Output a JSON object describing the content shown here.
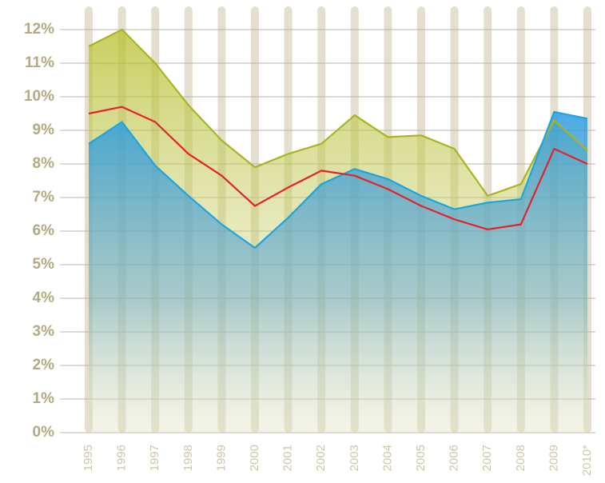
{
  "chart_data": {
    "type": "line",
    "categories": [
      "1995",
      "1996",
      "1997",
      "1998",
      "1999",
      "2000",
      "2001",
      "2002",
      "2003",
      "2004",
      "2005",
      "2006",
      "2007",
      "2008",
      "2009",
      "2010*"
    ],
    "series": [
      {
        "color": "#a9b420",
        "fill": true,
        "values": [
          11.5,
          12.0,
          11.0,
          9.75,
          8.7,
          7.9,
          8.3,
          8.6,
          9.45,
          8.8,
          8.85,
          8.45,
          7.05,
          7.4,
          9.3,
          8.4
        ]
      },
      {
        "color": "#1aa7e0",
        "fill": true,
        "values": [
          8.6,
          9.25,
          7.95,
          7.05,
          6.2,
          5.5,
          6.4,
          7.4,
          7.85,
          7.55,
          7.05,
          6.65,
          6.85,
          6.95,
          9.55,
          9.35
        ]
      },
      {
        "color": "#e2232b",
        "fill": false,
        "values": [
          9.5,
          9.7,
          9.25,
          8.3,
          7.65,
          6.75,
          7.3,
          7.8,
          7.65,
          7.25,
          6.75,
          6.35,
          6.05,
          6.2,
          8.45,
          8.0
        ]
      }
    ],
    "ylim": [
      0,
      12
    ],
    "yticks": [
      {
        "value": 0,
        "label": "0%"
      },
      {
        "value": 1,
        "label": "1%"
      },
      {
        "value": 2,
        "label": "2%"
      },
      {
        "value": 3,
        "label": "3%"
      },
      {
        "value": 4,
        "label": "4%"
      },
      {
        "value": 5,
        "label": "5%"
      },
      {
        "value": 6,
        "label": "6%"
      },
      {
        "value": 7,
        "label": "7%"
      },
      {
        "value": 8,
        "label": "8%"
      },
      {
        "value": 9,
        "label": "9%"
      },
      {
        "value": 10,
        "label": "10%"
      },
      {
        "value": 11,
        "label": "11%"
      },
      {
        "value": 12,
        "label": "12%"
      }
    ],
    "grid": true
  }
}
